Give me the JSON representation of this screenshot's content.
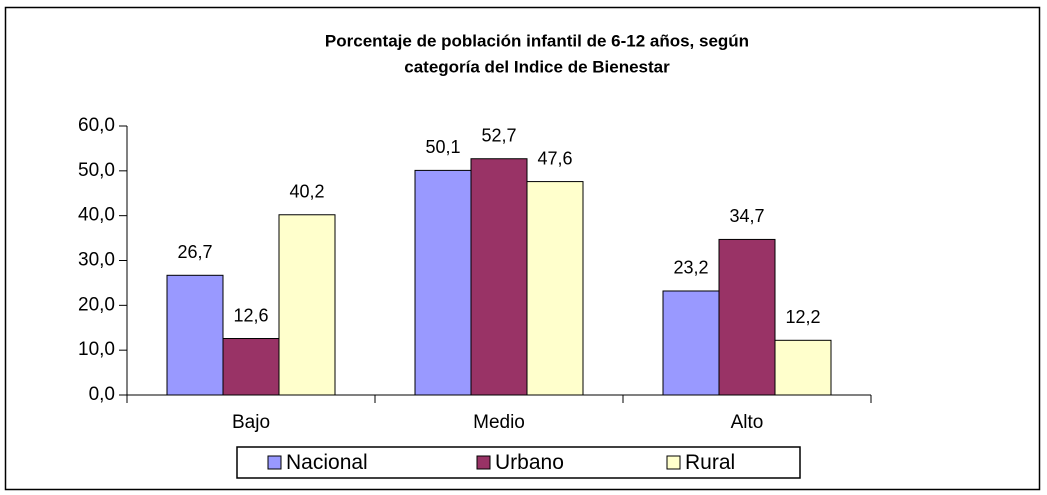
{
  "chart_data": {
    "type": "bar",
    "title": [
      "Porcentaje de población infantil de 6-12 años, según",
      "categoría del Indice de Bienestar"
    ],
    "categories": [
      "Bajo",
      "Medio",
      "Alto"
    ],
    "series": [
      {
        "name": "Nacional",
        "color": "#9999ff",
        "values": [
          26.7,
          50.1,
          23.2
        ],
        "value_labels": [
          "26,7",
          "50,1",
          "23,2"
        ]
      },
      {
        "name": "Urbano",
        "color": "#993366",
        "values": [
          12.6,
          52.7,
          34.7
        ],
        "value_labels": [
          "12,6",
          "52,7",
          "34,7"
        ]
      },
      {
        "name": "Rural",
        "color": "#ffffcc",
        "values": [
          40.2,
          47.6,
          12.2
        ],
        "value_labels": [
          "40,2",
          "47,6",
          "12,2"
        ]
      }
    ],
    "ylim": [
      0,
      60
    ],
    "yticks": [
      {
        "value": 0,
        "label": "0,0"
      },
      {
        "value": 10,
        "label": "10,0"
      },
      {
        "value": 20,
        "label": "20,0"
      },
      {
        "value": 30,
        "label": "30,0"
      },
      {
        "value": 40,
        "label": "40,0"
      },
      {
        "value": 50,
        "label": "50,0"
      },
      {
        "value": 60,
        "label": "60,0"
      }
    ],
    "legend": "bottom"
  }
}
